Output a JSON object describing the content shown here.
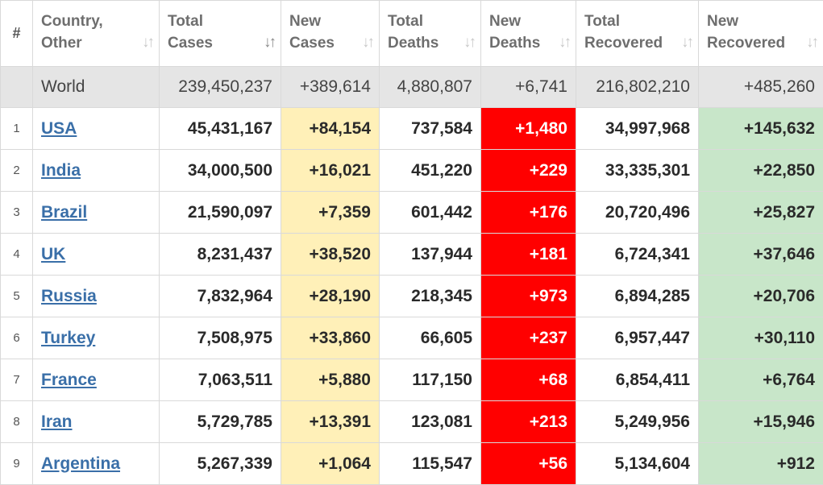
{
  "table": {
    "headers": {
      "rank": "#",
      "country_line1": "Country,",
      "country_line2": "Other",
      "total_cases_line1": "Total",
      "total_cases_line2": "Cases",
      "new_cases_line1": "New",
      "new_cases_line2": "Cases",
      "total_deaths_line1": "Total",
      "total_deaths_line2": "Deaths",
      "new_deaths_line1": "New",
      "new_deaths_line2": "Deaths",
      "total_recovered_line1": "Total",
      "total_recovered_line2": "Recovered",
      "new_recovered_line1": "New",
      "new_recovered_line2": "Recovered"
    },
    "sort_icon": "sort-arrows-icon",
    "sort_glyph": "↓↑",
    "world": {
      "country": "World",
      "total_cases": "239,450,237",
      "new_cases": "+389,614",
      "total_deaths": "4,880,807",
      "new_deaths": "+6,741",
      "total_recovered": "216,802,210",
      "new_recovered": "+485,260"
    },
    "rows": [
      {
        "rank": "1",
        "country": "USA",
        "total_cases": "45,431,167",
        "new_cases": "+84,154",
        "total_deaths": "737,584",
        "new_deaths": "+1,480",
        "total_recovered": "34,997,968",
        "new_recovered": "+145,632"
      },
      {
        "rank": "2",
        "country": "India",
        "total_cases": "34,000,500",
        "new_cases": "+16,021",
        "total_deaths": "451,220",
        "new_deaths": "+229",
        "total_recovered": "33,335,301",
        "new_recovered": "+22,850"
      },
      {
        "rank": "3",
        "country": "Brazil",
        "total_cases": "21,590,097",
        "new_cases": "+7,359",
        "total_deaths": "601,442",
        "new_deaths": "+176",
        "total_recovered": "20,720,496",
        "new_recovered": "+25,827"
      },
      {
        "rank": "4",
        "country": "UK",
        "total_cases": "8,231,437",
        "new_cases": "+38,520",
        "total_deaths": "137,944",
        "new_deaths": "+181",
        "total_recovered": "6,724,341",
        "new_recovered": "+37,646"
      },
      {
        "rank": "5",
        "country": "Russia",
        "total_cases": "7,832,964",
        "new_cases": "+28,190",
        "total_deaths": "218,345",
        "new_deaths": "+973",
        "total_recovered": "6,894,285",
        "new_recovered": "+20,706"
      },
      {
        "rank": "6",
        "country": "Turkey",
        "total_cases": "7,508,975",
        "new_cases": "+33,860",
        "total_deaths": "66,605",
        "new_deaths": "+237",
        "total_recovered": "6,957,447",
        "new_recovered": "+30,110"
      },
      {
        "rank": "7",
        "country": "France",
        "total_cases": "7,063,511",
        "new_cases": "+5,880",
        "total_deaths": "117,150",
        "new_deaths": "+68",
        "total_recovered": "6,854,411",
        "new_recovered": "+6,764"
      },
      {
        "rank": "8",
        "country": "Iran",
        "total_cases": "5,729,785",
        "new_cases": "+13,391",
        "total_deaths": "123,081",
        "new_deaths": "+213",
        "total_recovered": "5,249,956",
        "new_recovered": "+15,946"
      },
      {
        "rank": "9",
        "country": "Argentina",
        "total_cases": "5,267,339",
        "new_cases": "+1,064",
        "total_deaths": "115,547",
        "new_deaths": "+56",
        "total_recovered": "5,134,604",
        "new_recovered": "+912"
      }
    ]
  },
  "colors": {
    "new_cases_bg": "#fff0b8",
    "new_deaths_bg": "#ff0000",
    "new_recovered_bg": "#c8e6c9",
    "world_row_bg": "#e5e5e5",
    "link": "#3a6fa8"
  }
}
